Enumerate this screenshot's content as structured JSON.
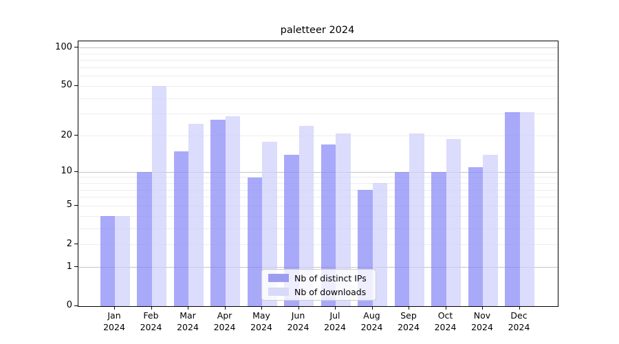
{
  "title": "paletteer 2024",
  "legend": {
    "items": [
      {
        "label": "Nb of distinct IPs",
        "color": "#9c9cf0"
      },
      {
        "label": "Nb of downloads",
        "color": "#d9d9f8"
      }
    ]
  },
  "chart_data": {
    "type": "bar",
    "title": "paletteer 2024",
    "y_scale": "log1p",
    "ylim": [
      0,
      113
    ],
    "grid": "both",
    "legend_position": "lower-center",
    "categories": [
      "Jan 2024",
      "Feb 2024",
      "Mar 2024",
      "Apr 2024",
      "May 2024",
      "Jun 2024",
      "Jul 2024",
      "Aug 2024",
      "Sep 2024",
      "Oct 2024",
      "Nov 2024",
      "Dec 2024"
    ],
    "x_tick_labels": [
      {
        "month": "Jan",
        "year": "2024"
      },
      {
        "month": "Feb",
        "year": "2024"
      },
      {
        "month": "Mar",
        "year": "2024"
      },
      {
        "month": "Apr",
        "year": "2024"
      },
      {
        "month": "May",
        "year": "2024"
      },
      {
        "month": "Jun",
        "year": "2024"
      },
      {
        "month": "Jul",
        "year": "2024"
      },
      {
        "month": "Aug",
        "year": "2024"
      },
      {
        "month": "Sep",
        "year": "2024"
      },
      {
        "month": "Oct",
        "year": "2024"
      },
      {
        "month": "Nov",
        "year": "2024"
      },
      {
        "month": "Dec",
        "year": "2024"
      }
    ],
    "series": [
      {
        "name": "Nb of distinct IPs",
        "color": "#8888f8",
        "values": [
          4,
          10,
          15,
          27,
          9,
          14,
          17,
          7,
          10,
          10,
          11,
          31
        ]
      },
      {
        "name": "Nb of downloads",
        "color": "#cecefc",
        "values": [
          4,
          50,
          25,
          29,
          18,
          24,
          21,
          8,
          21,
          19,
          14,
          31
        ]
      }
    ],
    "y_ticks": [
      100,
      50,
      20,
      10,
      5,
      2,
      1,
      0
    ],
    "major_gridlines": [
      1,
      10,
      100
    ],
    "minor_gridlines": [
      2,
      3,
      4,
      5,
      6,
      7,
      8,
      9,
      20,
      30,
      40,
      50,
      60,
      70,
      80,
      90
    ]
  }
}
